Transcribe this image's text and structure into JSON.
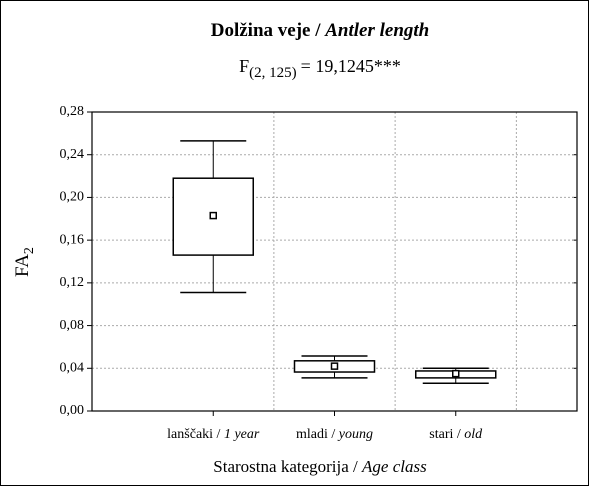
{
  "chart_data": {
    "type": "box",
    "title": [
      "Dolžina veje /",
      "Antler length"
    ],
    "subtitle": [
      "F",
      "(2, 125)",
      "= 19,1245***"
    ],
    "y_label": [
      "FA",
      "2"
    ],
    "x_label": [
      "Starostna kategorija /",
      "Age class"
    ],
    "categories": [
      [
        "lanščaki /",
        "1 year"
      ],
      [
        "mladi /",
        "young"
      ],
      [
        "stari /",
        "old"
      ]
    ],
    "boxes": [
      {
        "whiskers": [
          0.111,
          0.253
        ],
        "box": [
          0.146,
          0.218
        ],
        "mean": 0.183
      },
      {
        "whiskers": [
          0.031,
          0.0515
        ],
        "box": [
          0.0365,
          0.047
        ],
        "mean": 0.042
      },
      {
        "whiskers": [
          0.026,
          0.04
        ],
        "box": [
          0.031,
          0.0375
        ],
        "mean": 0.035
      }
    ],
    "ylim": [
      0,
      0.28
    ],
    "yticks": [
      {
        "value": 0,
        "label": "0,00"
      },
      {
        "value": 0.04,
        "label": "0,04"
      },
      {
        "value": 0.08,
        "label": "0,08"
      },
      {
        "value": 0.12,
        "label": "0,12"
      },
      {
        "value": 0.16,
        "label": "0,16"
      },
      {
        "value": 0.2,
        "label": "0,20"
      },
      {
        "value": 0.24,
        "label": "0,24"
      },
      {
        "value": 0.28,
        "label": "0,28"
      }
    ],
    "grid": true,
    "color": "#000000"
  }
}
